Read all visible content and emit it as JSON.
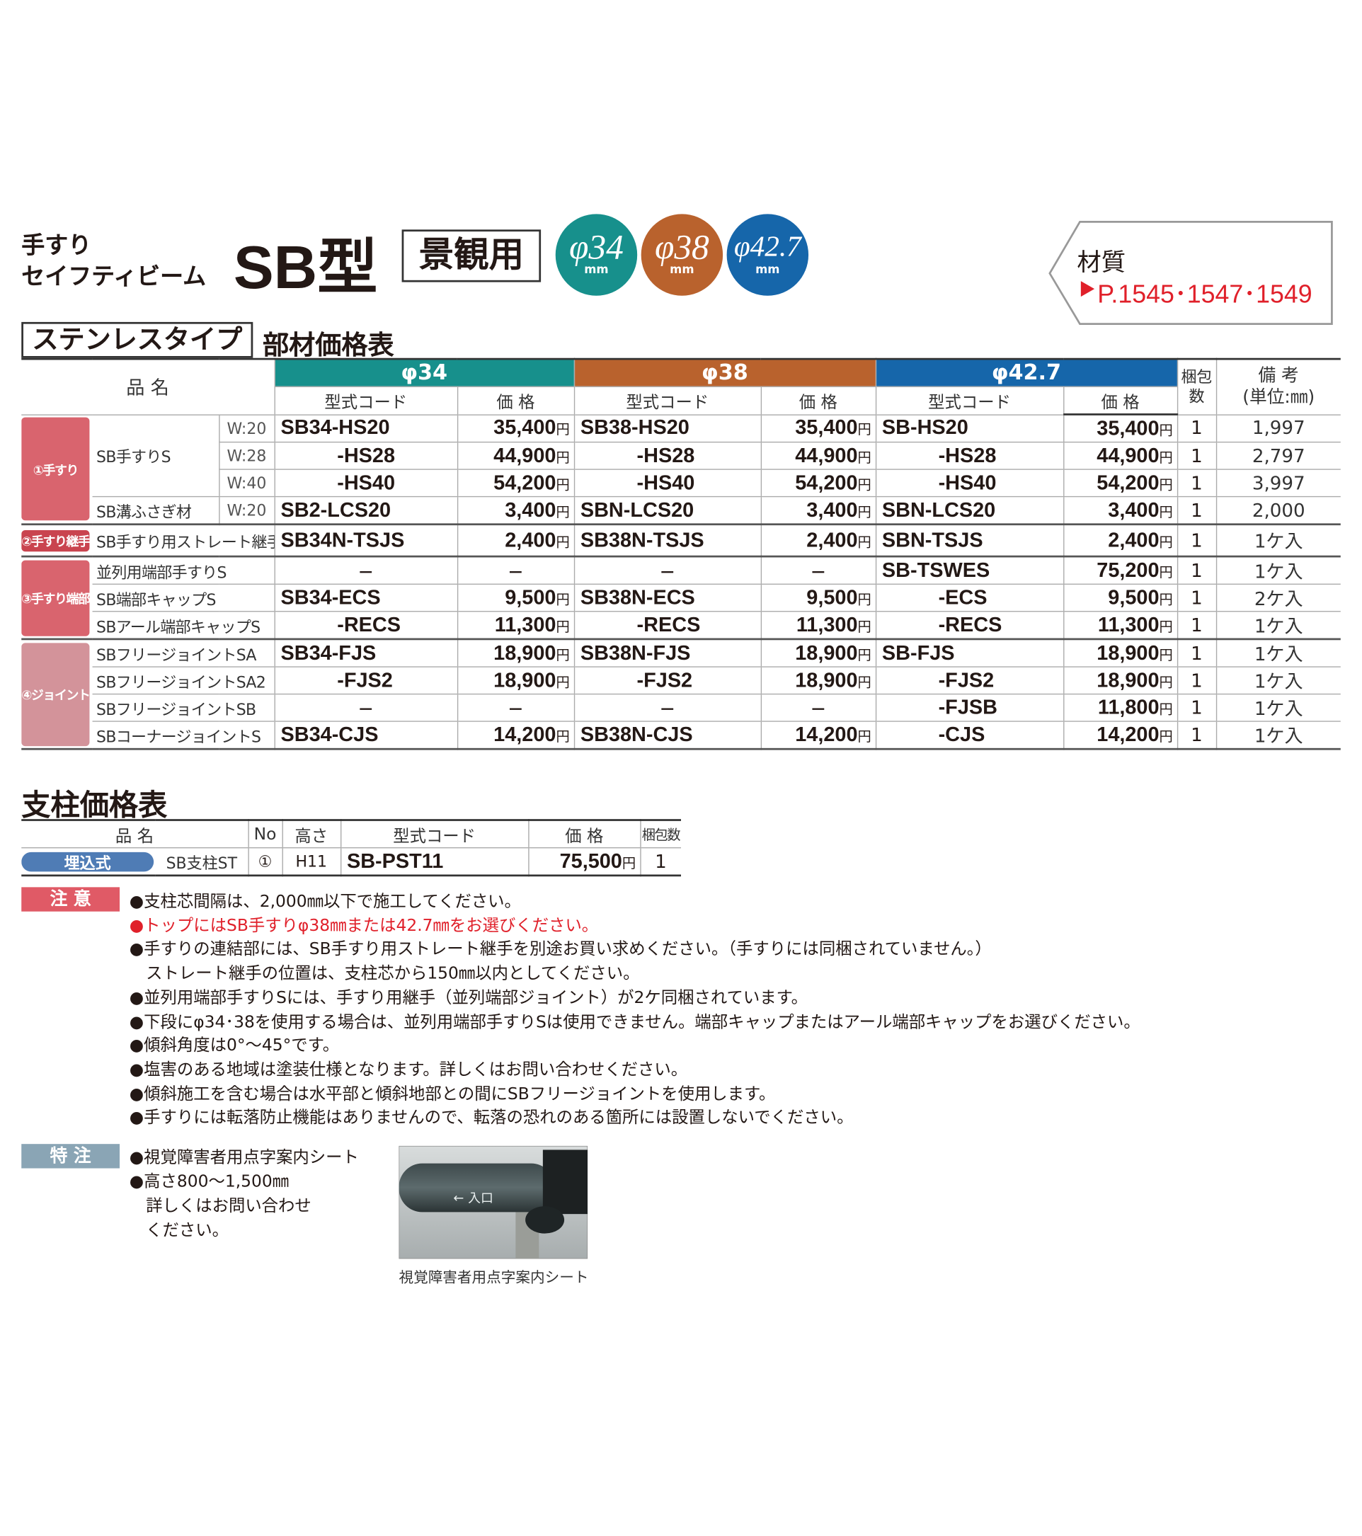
{
  "header": {
    "label_line1": "手すり",
    "label_line2": "セイフティビーム",
    "model": "SB型",
    "tag": "景観用",
    "sizes": [
      {
        "label": "φ34",
        "unit": "mm",
        "color": "#17908c"
      },
      {
        "label": "φ38",
        "unit": "mm",
        "color": "#b9622d"
      },
      {
        "label": "φ42.7",
        "unit": "mm",
        "color": "#1666aa"
      }
    ],
    "material": {
      "label": "材質",
      "ref": "P.1545･1547･1549"
    }
  },
  "section1": {
    "badge": "ステンレスタイプ",
    "title": "部材価格表"
  },
  "table1": {
    "name_header": "品 名",
    "code_header": "型式コード",
    "price_header": "価 格",
    "pack_header": "梱包数",
    "note_header": "備 考",
    "note_unit": "(単位:㎜)",
    "yen": "円",
    "columns": [
      {
        "label": "φ34",
        "color": "#17908c"
      },
      {
        "label": "φ38",
        "color": "#b9622d"
      },
      {
        "label": "φ42.7",
        "color": "#1666aa"
      }
    ],
    "groups": [
      {
        "label": "①手すり",
        "color": "#d9646e",
        "rows": [
          {
            "name": "SB手すりS",
            "span": 3,
            "width": "W:20",
            "cells": [
              "SB34-HS20",
              "35,400",
              "SB38-HS20",
              "35,400",
              "SB-HS20",
              "35,400"
            ],
            "pack": "1",
            "note": "1,997"
          },
          {
            "width": "W:28",
            "cells": [
              "-HS28",
              "44,900",
              "-HS28",
              "44,900",
              "-HS28",
              "44,900"
            ],
            "pack": "1",
            "note": "2,797"
          },
          {
            "width": "W:40",
            "cells": [
              "-HS40",
              "54,200",
              "-HS40",
              "54,200",
              "-HS40",
              "54,200"
            ],
            "pack": "1",
            "note": "3,997"
          },
          {
            "name": "SB溝ふさぎ材",
            "span": 1,
            "width": "W:20",
            "cells": [
              "SB2-LCS20",
              "3,400",
              "SBN-LCS20",
              "3,400",
              "SBN-LCS20",
              "3,400"
            ],
            "pack": "1",
            "note": "2,000"
          }
        ]
      },
      {
        "label": "②手すり継手",
        "color": "#c9444f",
        "rows": [
          {
            "name": "SB手すり用ストレート継手",
            "span": 1,
            "cells": [
              "SB34N-TSJS",
              "2,400",
              "SB38N-TSJS",
              "2,400",
              "SBN-TSJS",
              "2,400"
            ],
            "pack": "1",
            "note": "1ケ入"
          }
        ]
      },
      {
        "label": "③手すり端部",
        "color": "#d9646e",
        "rows": [
          {
            "name": "並列用端部手すりS",
            "span": 1,
            "cells": [
              "－",
              "－",
              "－",
              "－",
              "SB-TSWES",
              "75,200"
            ],
            "pack": "1",
            "note": "1ケ入"
          },
          {
            "name": "SB端部キャップS",
            "span": 1,
            "cells": [
              "SB34-ECS",
              "9,500",
              "SB38N-ECS",
              "9,500",
              "-ECS",
              "9,500"
            ],
            "pack": "1",
            "note": "2ケ入"
          },
          {
            "name": "SBアール端部キャップS",
            "span": 1,
            "cells": [
              "-RECS",
              "11,300",
              "-RECS",
              "11,300",
              "-RECS",
              "11,300"
            ],
            "pack": "1",
            "note": "1ケ入"
          }
        ]
      },
      {
        "label": "④ジョイント",
        "color": "#d3939a",
        "rows": [
          {
            "name": "SBフリージョイントSA",
            "span": 1,
            "cells": [
              "SB34-FJS",
              "18,900",
              "SB38N-FJS",
              "18,900",
              "SB-FJS",
              "18,900"
            ],
            "pack": "1",
            "note": "1ケ入"
          },
          {
            "name": "SBフリージョイントSA2",
            "span": 1,
            "cells": [
              "-FJS2",
              "18,900",
              "-FJS2",
              "18,900",
              "-FJS2",
              "18,900"
            ],
            "pack": "1",
            "note": "1ケ入"
          },
          {
            "name": "SBフリージョイントSB",
            "span": 1,
            "cells": [
              "－",
              "－",
              "－",
              "－",
              "-FJSB",
              "11,800"
            ],
            "pack": "1",
            "note": "1ケ入"
          },
          {
            "name": "SBコーナージョイントS",
            "span": 1,
            "cells": [
              "SB34-CJS",
              "14,200",
              "SB38N-CJS",
              "14,200",
              "-CJS",
              "14,200"
            ],
            "pack": "1",
            "note": "1ケ入"
          }
        ]
      }
    ]
  },
  "section2": {
    "title": "支柱価格表"
  },
  "table2": {
    "headers": [
      "品 名",
      "No",
      "高さ",
      "型式コード",
      "価 格",
      "梱包数"
    ],
    "yen": "円",
    "row": {
      "badge": "埋込式",
      "name": "SB支柱ST",
      "no": "①",
      "height": "H11",
      "code": "SB-PST11",
      "price": "75,500",
      "pack": "1"
    }
  },
  "caution": {
    "label": "注 意",
    "lines": [
      {
        "text": "●支柱芯間隔は、2,000㎜以下で施工してください。"
      },
      {
        "text": "●トップにはSB手すりφ38㎜または42.7㎜をお選びください。",
        "red": true
      },
      {
        "text": "●手すりの連結部には、SB手すり用ストレート継手を別途お買い求めください。（手すりには同梱されていません。）"
      },
      {
        "text": "　ストレート継手の位置は、支柱芯から150㎜以内としてください。"
      },
      {
        "text": "●並列用端部手すりSには、手すり用継手（並列端部ジョイント）が2ケ同梱されています。"
      },
      {
        "text": "●下段にφ34･38を使用する場合は、並列用端部手すりSは使用できません。端部キャップまたはアール端部キャップをお選びください。"
      },
      {
        "text": "●傾斜角度は0°～45°です。"
      },
      {
        "text": "●塩害のある地域は塗装仕様となります。詳しくはお問い合わせください。"
      },
      {
        "text": "●傾斜施工を含む場合は水平部と傾斜地部との間にSBフリージョイントを使用します。"
      },
      {
        "text": "●手すりには転落防止機能はありませんので、転落の恐れのある箇所には設置しないでください。"
      }
    ]
  },
  "special": {
    "label": "特 注",
    "lines": [
      "●視覚障害者用点字案内シート",
      "●高さ800～1,500㎜",
      "　詳しくはお問い合わせ",
      "　ください。"
    ],
    "photo_text": "← 入口",
    "caption": "視覚障害者用点字案内シート"
  }
}
